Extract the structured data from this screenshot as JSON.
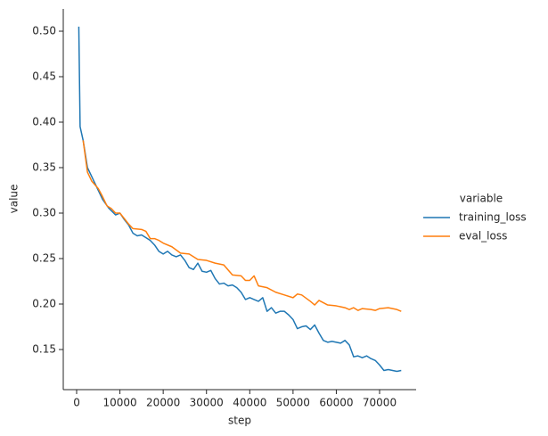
{
  "chart_data": {
    "type": "line",
    "xlabel": "step",
    "ylabel": "value",
    "xlim": [
      -3090,
      78440
    ],
    "ylim": [
      0.1059,
      0.5245
    ],
    "xticks": [
      0,
      10000,
      20000,
      30000,
      40000,
      50000,
      60000,
      70000
    ],
    "yticks": [
      0.15,
      {
        "value": 0.2,
        "label": "0.20"
      },
      0.25,
      {
        "value": 0.3,
        "label": "0.30"
      },
      0.35,
      {
        "value": 0.4,
        "label": "0.40"
      },
      0.45,
      {
        "value": 0.5,
        "label": "0.50"
      }
    ],
    "legend_title": "variable",
    "legend": "right",
    "series": [
      {
        "name": "training_loss",
        "color": "#1f77b4",
        "x": [
          500,
          800,
          1500,
          2500,
          3500,
          5000,
          6000,
          7500,
          9000,
          10000,
          11000,
          12000,
          13000,
          14000,
          15000,
          16000,
          17000,
          18000,
          19000,
          20000,
          21000,
          22000,
          23000,
          24000,
          25000,
          26000,
          27000,
          28000,
          29000,
          30000,
          31000,
          32000,
          33000,
          34000,
          35000,
          36000,
          37000,
          38000,
          39000,
          40000,
          41000,
          42000,
          43000,
          44000,
          45000,
          46000,
          47000,
          48000,
          49000,
          50000,
          51000,
          52000,
          53000,
          54000,
          55000,
          56000,
          57000,
          58000,
          59000,
          60000,
          61000,
          62000,
          63000,
          64000,
          65000,
          66000,
          67000,
          68000,
          69000,
          70000,
          71000,
          72000,
          73000,
          74000,
          75000
        ],
        "values": [
          0.505,
          0.395,
          0.38,
          0.35,
          0.34,
          0.325,
          0.315,
          0.305,
          0.298,
          0.3,
          0.293,
          0.287,
          0.278,
          0.275,
          0.276,
          0.273,
          0.27,
          0.265,
          0.258,
          0.255,
          0.258,
          0.254,
          0.252,
          0.254,
          0.248,
          0.24,
          0.238,
          0.245,
          0.236,
          0.235,
          0.237,
          0.228,
          0.222,
          0.223,
          0.22,
          0.221,
          0.218,
          0.213,
          0.205,
          0.207,
          0.205,
          0.203,
          0.207,
          0.192,
          0.196,
          0.19,
          0.192,
          0.192,
          0.188,
          0.183,
          0.173,
          0.175,
          0.176,
          0.172,
          0.177,
          0.168,
          0.16,
          0.158,
          0.159,
          0.158,
          0.157,
          0.16,
          0.155,
          0.142,
          0.143,
          0.141,
          0.143,
          0.14,
          0.138,
          0.133,
          0.127,
          0.128,
          0.127,
          0.126,
          0.127
        ]
      },
      {
        "name": "eval_loss",
        "color": "#ff7f0e",
        "x": [
          1500,
          2500,
          3500,
          5000,
          6000,
          7000,
          8000,
          9000,
          10000,
          12000,
          13000,
          15000,
          16000,
          17000,
          18000,
          19000,
          20000,
          22000,
          24000,
          26000,
          28000,
          30000,
          32000,
          34000,
          36000,
          38000,
          39000,
          40000,
          41000,
          42000,
          44000,
          46000,
          48000,
          50000,
          51000,
          52000,
          54000,
          55000,
          56000,
          58000,
          60000,
          62000,
          63000,
          64000,
          65000,
          66000,
          68000,
          69000,
          70000,
          72000,
          74000,
          75000
        ],
        "values": [
          0.38,
          0.345,
          0.335,
          0.327,
          0.318,
          0.308,
          0.305,
          0.3,
          0.3,
          0.288,
          0.283,
          0.282,
          0.28,
          0.272,
          0.272,
          0.27,
          0.267,
          0.263,
          0.256,
          0.255,
          0.249,
          0.248,
          0.245,
          0.243,
          0.232,
          0.231,
          0.226,
          0.226,
          0.231,
          0.22,
          0.218,
          0.213,
          0.21,
          0.207,
          0.211,
          0.21,
          0.203,
          0.199,
          0.204,
          0.199,
          0.198,
          0.196,
          0.194,
          0.196,
          0.193,
          0.195,
          0.194,
          0.193,
          0.195,
          0.196,
          0.194,
          0.192
        ]
      }
    ]
  }
}
